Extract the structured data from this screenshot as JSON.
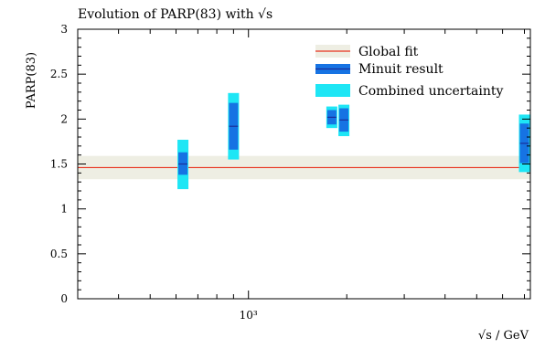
{
  "chart_data": {
    "type": "scatter",
    "title": "Evolution of PARP(83) with √s",
    "xlabel": "√s / GeV",
    "ylabel": "PARP(83)",
    "x_scale": "log",
    "xlim": [
      300,
      7300
    ],
    "ylim": [
      0,
      3
    ],
    "yticks": [
      "0",
      "0.5",
      "1",
      "1.5",
      "2",
      "2.5",
      "3"
    ],
    "x_tick_label": "10³",
    "grid": false,
    "legend_position": "top-right",
    "legend": {
      "global_fit": "Global fit",
      "minuit": "Minuit result",
      "combined": "Combined uncertainty"
    },
    "global_fit": {
      "value": 1.46,
      "band": [
        1.33,
        1.59
      ]
    },
    "points": [
      {
        "x": 630,
        "value": 1.5,
        "stat": [
          1.38,
          1.63
        ],
        "combined": [
          1.22,
          1.77
        ]
      },
      {
        "x": 900,
        "value": 1.92,
        "stat": [
          1.66,
          2.18
        ],
        "combined": [
          1.55,
          2.29
        ]
      },
      {
        "x": 1800,
        "value": 2.02,
        "stat": [
          1.94,
          2.1
        ],
        "combined": [
          1.9,
          2.14
        ]
      },
      {
        "x": 1960,
        "value": 1.99,
        "stat": [
          1.86,
          2.12
        ],
        "combined": [
          1.81,
          2.16
        ]
      },
      {
        "x": 7000,
        "value": 1.73,
        "stat": [
          1.51,
          1.95
        ],
        "combined": [
          1.41,
          2.05
        ]
      }
    ],
    "colors": {
      "global_line": "#e8321e",
      "global_band": "#eeeee3",
      "minuit": "#1673e3",
      "combined": "#1ee6f5",
      "central": "#1a2f9a"
    }
  }
}
